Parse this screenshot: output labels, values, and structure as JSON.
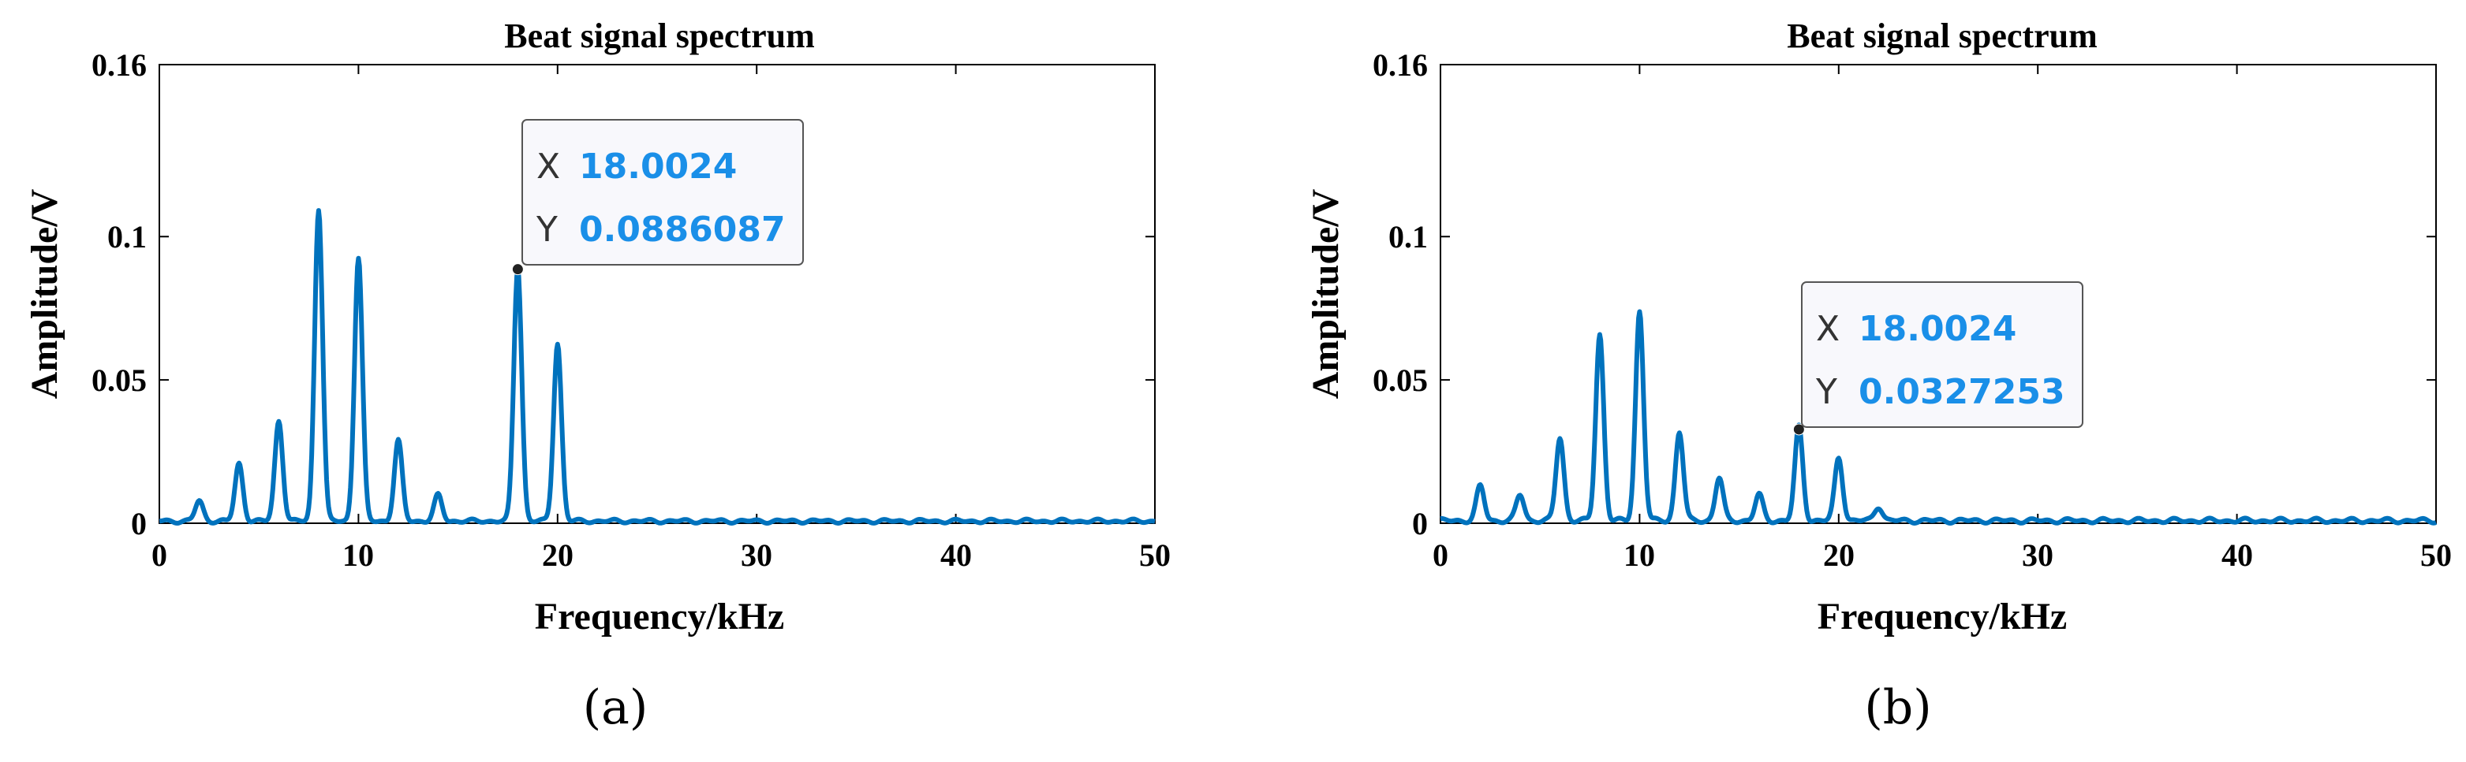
{
  "colors": {
    "line": "#0072BD",
    "datatip_value": "#1A8FE8",
    "datatip_box": "#F8F8FC",
    "marker": "#222222"
  },
  "charts": [
    {
      "panel_label": "(a)",
      "datatip": {
        "x_key": "X",
        "y_key": "Y",
        "x_value": "18.0024",
        "y_value": "0.0886087"
      }
    },
    {
      "panel_label": "(b)",
      "datatip": {
        "x_key": "X",
        "y_key": "Y",
        "x_value": "18.0024",
        "y_value": "0.0327253"
      }
    }
  ],
  "chart_data": [
    {
      "type": "line",
      "title": "Beat signal spectrum",
      "xlabel": "Frequency/kHz",
      "ylabel": "Amplitude/V",
      "xlim": [
        0,
        50
      ],
      "ylim": [
        0,
        0.16
      ],
      "xticks": [
        "0",
        "10",
        "20",
        "30",
        "40",
        "50"
      ],
      "yticks": [
        "0",
        "0.05",
        "0.1",
        "0.16"
      ],
      "grid": false,
      "series": [
        {
          "peaks": [
            {
              "f": 2,
              "a": 0.007
            },
            {
              "f": 4,
              "a": 0.02
            },
            {
              "f": 6,
              "a": 0.035
            },
            {
              "f": 8,
              "a": 0.109
            },
            {
              "f": 10,
              "a": 0.092
            },
            {
              "f": 12,
              "a": 0.028
            },
            {
              "f": 14,
              "a": 0.009
            },
            {
              "f": 18,
              "a": 0.0886
            },
            {
              "f": 20,
              "a": 0.062
            }
          ],
          "noise_floor": 0.0015
        }
      ],
      "highlight_point": {
        "x": 18.0024,
        "y": 0.0886087
      }
    },
    {
      "type": "line",
      "title": "Beat signal spectrum",
      "xlabel": "Frequency/kHz",
      "ylabel": "Amplitude/V",
      "xlim": [
        0,
        50
      ],
      "ylim": [
        0,
        0.16
      ],
      "xticks": [
        "0",
        "10",
        "20",
        "30",
        "40",
        "50"
      ],
      "yticks": [
        "0",
        "0.05",
        "0.1",
        "0.16"
      ],
      "grid": false,
      "series": [
        {
          "peaks": [
            {
              "f": 2,
              "a": 0.012
            },
            {
              "f": 4,
              "a": 0.009
            },
            {
              "f": 6,
              "a": 0.029
            },
            {
              "f": 8,
              "a": 0.065
            },
            {
              "f": 10,
              "a": 0.073
            },
            {
              "f": 12,
              "a": 0.031
            },
            {
              "f": 14,
              "a": 0.015
            },
            {
              "f": 16,
              "a": 0.009
            },
            {
              "f": 18,
              "a": 0.0327
            },
            {
              "f": 20,
              "a": 0.022
            },
            {
              "f": 22,
              "a": 0.005
            }
          ],
          "noise_floor": 0.0018
        }
      ],
      "highlight_point": {
        "x": 18.0024,
        "y": 0.0327253
      }
    }
  ]
}
